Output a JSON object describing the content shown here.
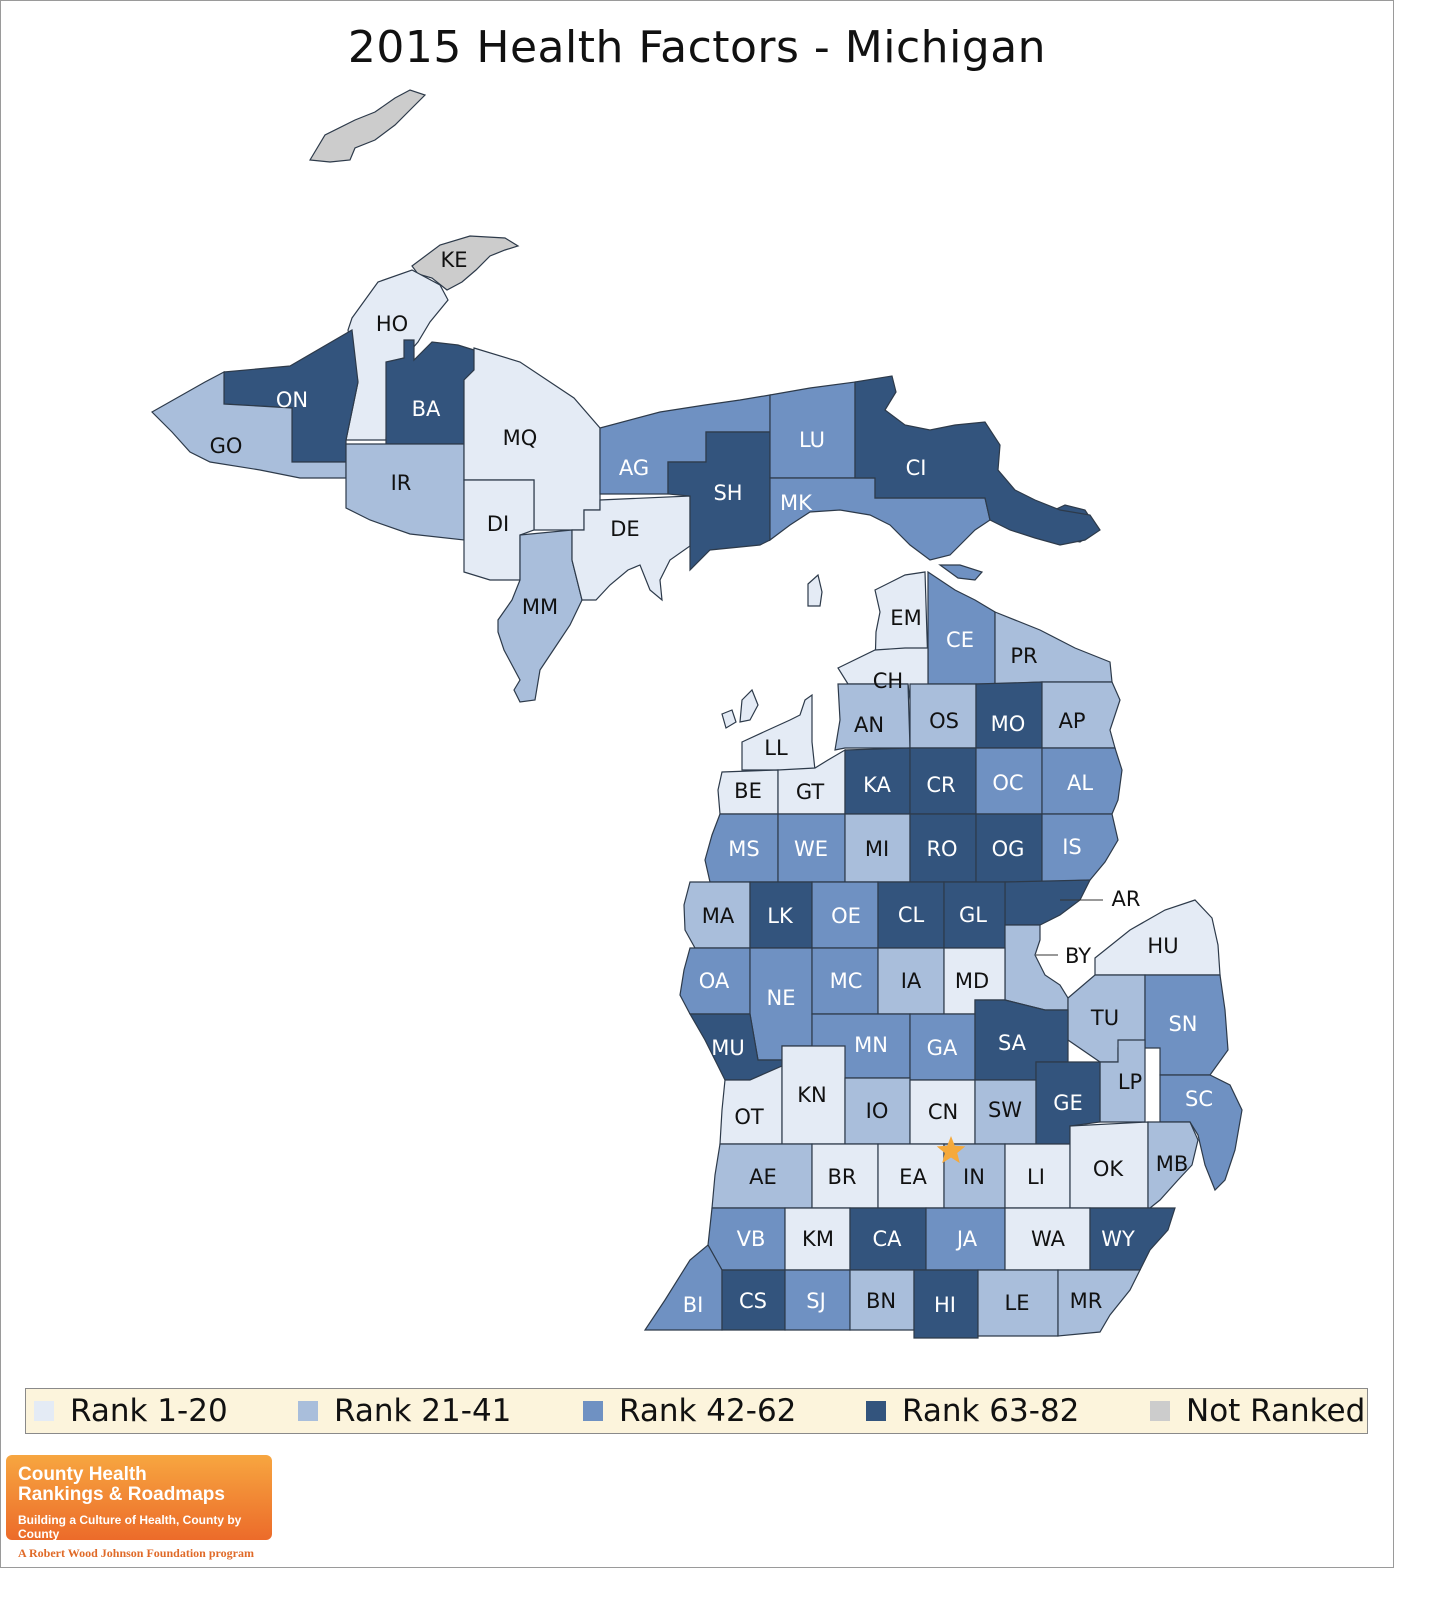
{
  "title": "2015 Health Factors - Michigan",
  "legend": [
    {
      "label": "Rank 1-20",
      "color": "#e4ebf5"
    },
    {
      "label": "Rank 21-41",
      "color": "#a9bedb"
    },
    {
      "label": "Rank 42-62",
      "color": "#6f91c2"
    },
    {
      "label": "Rank 63-82",
      "color": "#33547d"
    },
    {
      "label": "Not Ranked",
      "color": "#cccccc"
    }
  ],
  "highlight_marker": {
    "icon": "star-icon",
    "color": "#f5a93b",
    "county": "IN"
  },
  "counties": [
    {
      "abbr": "KE",
      "tier": 4
    },
    {
      "abbr": "HO",
      "tier": 0
    },
    {
      "abbr": "ON",
      "tier": 3
    },
    {
      "abbr": "BA",
      "tier": 3
    },
    {
      "abbr": "GO",
      "tier": 1
    },
    {
      "abbr": "IR",
      "tier": 1
    },
    {
      "abbr": "MQ",
      "tier": 0
    },
    {
      "abbr": "DI",
      "tier": 0
    },
    {
      "abbr": "MM",
      "tier": 1
    },
    {
      "abbr": "DE",
      "tier": 0
    },
    {
      "abbr": "AG",
      "tier": 2
    },
    {
      "abbr": "SH",
      "tier": 3
    },
    {
      "abbr": "LU",
      "tier": 2
    },
    {
      "abbr": "MK",
      "tier": 2
    },
    {
      "abbr": "CI",
      "tier": 3
    },
    {
      "abbr": "EM",
      "tier": 0
    },
    {
      "abbr": "CE",
      "tier": 2
    },
    {
      "abbr": "PR",
      "tier": 1
    },
    {
      "abbr": "CH",
      "tier": 0
    },
    {
      "abbr": "AN",
      "tier": 1
    },
    {
      "abbr": "OS",
      "tier": 1
    },
    {
      "abbr": "MO",
      "tier": 3
    },
    {
      "abbr": "AP",
      "tier": 1
    },
    {
      "abbr": "LL",
      "tier": 0
    },
    {
      "abbr": "BE",
      "tier": 0
    },
    {
      "abbr": "GT",
      "tier": 0
    },
    {
      "abbr": "KA",
      "tier": 3
    },
    {
      "abbr": "CR",
      "tier": 3
    },
    {
      "abbr": "OC",
      "tier": 2
    },
    {
      "abbr": "AL",
      "tier": 2
    },
    {
      "abbr": "MS",
      "tier": 2
    },
    {
      "abbr": "WE",
      "tier": 2
    },
    {
      "abbr": "MI",
      "tier": 1
    },
    {
      "abbr": "RO",
      "tier": 3
    },
    {
      "abbr": "OG",
      "tier": 3
    },
    {
      "abbr": "IS",
      "tier": 2
    },
    {
      "abbr": "AR",
      "tier": 3
    },
    {
      "abbr": "MA",
      "tier": 1
    },
    {
      "abbr": "LK",
      "tier": 3
    },
    {
      "abbr": "OE",
      "tier": 2
    },
    {
      "abbr": "CL",
      "tier": 3
    },
    {
      "abbr": "GL",
      "tier": 3
    },
    {
      "abbr": "BY",
      "tier": 1
    },
    {
      "abbr": "HU",
      "tier": 0
    },
    {
      "abbr": "OA",
      "tier": 2
    },
    {
      "abbr": "NE",
      "tier": 2
    },
    {
      "abbr": "MC",
      "tier": 2
    },
    {
      "abbr": "IA",
      "tier": 1
    },
    {
      "abbr": "MD",
      "tier": 0
    },
    {
      "abbr": "TU",
      "tier": 1
    },
    {
      "abbr": "SN",
      "tier": 2
    },
    {
      "abbr": "MU",
      "tier": 3
    },
    {
      "abbr": "MN",
      "tier": 2
    },
    {
      "abbr": "GA",
      "tier": 2
    },
    {
      "abbr": "SA",
      "tier": 3
    },
    {
      "abbr": "LP",
      "tier": 1
    },
    {
      "abbr": "SC",
      "tier": 2
    },
    {
      "abbr": "OT",
      "tier": 0
    },
    {
      "abbr": "KN",
      "tier": 0
    },
    {
      "abbr": "IO",
      "tier": 1
    },
    {
      "abbr": "CN",
      "tier": 0
    },
    {
      "abbr": "SW",
      "tier": 1
    },
    {
      "abbr": "GE",
      "tier": 3
    },
    {
      "abbr": "AE",
      "tier": 1
    },
    {
      "abbr": "BR",
      "tier": 0
    },
    {
      "abbr": "EA",
      "tier": 0
    },
    {
      "abbr": "IN",
      "tier": 1
    },
    {
      "abbr": "LI",
      "tier": 0
    },
    {
      "abbr": "OK",
      "tier": 0
    },
    {
      "abbr": "MB",
      "tier": 1
    },
    {
      "abbr": "VB",
      "tier": 2
    },
    {
      "abbr": "KM",
      "tier": 0
    },
    {
      "abbr": "CA",
      "tier": 3
    },
    {
      "abbr": "JA",
      "tier": 2
    },
    {
      "abbr": "WA",
      "tier": 0
    },
    {
      "abbr": "WY",
      "tier": 3
    },
    {
      "abbr": "BI",
      "tier": 2
    },
    {
      "abbr": "CS",
      "tier": 3
    },
    {
      "abbr": "SJ",
      "tier": 2
    },
    {
      "abbr": "BN",
      "tier": 1
    },
    {
      "abbr": "HI",
      "tier": 3
    },
    {
      "abbr": "LE",
      "tier": 1
    },
    {
      "abbr": "MR",
      "tier": 1
    }
  ],
  "logo": {
    "line1": "County Health",
    "line2": "Rankings & Roadmaps",
    "tagline": "Building a Culture of Health, County by County",
    "program": "A Robert Wood Johnson Foundation program"
  }
}
